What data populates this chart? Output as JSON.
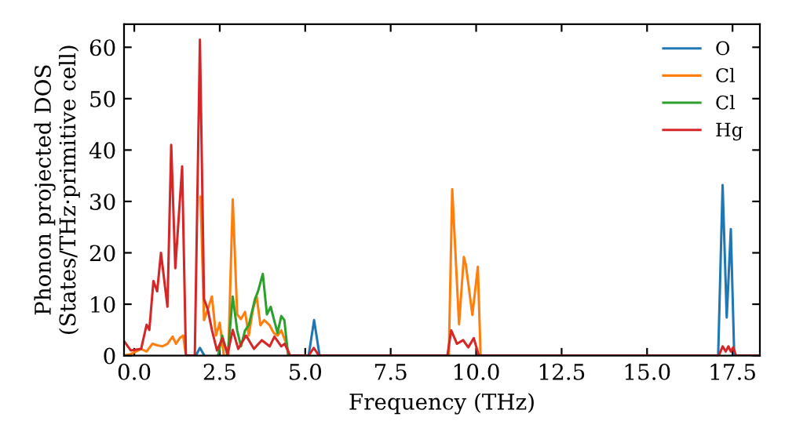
{
  "chart_data": {
    "type": "line",
    "xlabel": "Frequency (THz)",
    "ylabel": "Phonon projected DOS\n(States/THz·primitive cell)",
    "xlim": [
      -0.3,
      18.3
    ],
    "ylim": [
      0,
      64.5
    ],
    "xticks": [
      {
        "value": 0,
        "label": "0.0"
      },
      {
        "value": 2.5,
        "label": "2.5"
      },
      {
        "value": 5,
        "label": "5.0"
      },
      {
        "value": 7.5,
        "label": "7.5"
      },
      {
        "value": 10,
        "label": "10.0"
      },
      {
        "value": 12.5,
        "label": "12.5"
      },
      {
        "value": 15,
        "label": "15.0"
      },
      {
        "value": 17.5,
        "label": "17.5"
      }
    ],
    "yticks": [
      0,
      10,
      20,
      30,
      40,
      50,
      60
    ],
    "grid": false,
    "legend": "top right",
    "marker": "none",
    "line_style": "solid",
    "series": [
      {
        "name": "O",
        "color": "#1f77b4",
        "x": [
          1.8,
          1.92,
          2.05,
          3.5,
          5.1,
          5.26,
          5.42,
          13.0,
          17.08,
          17.21,
          17.33,
          17.45,
          17.55
        ],
        "values": [
          0,
          1.5,
          0,
          null,
          0,
          6.9,
          0,
          null,
          0,
          33.2,
          7.4,
          24.6,
          0
        ]
      },
      {
        "name": "Cl",
        "color": "#ff7f0e",
        "x": [
          -0.3,
          -0.1,
          0.2,
          0.36,
          0.53,
          0.67,
          0.82,
          0.97,
          1.12,
          1.22,
          1.33,
          1.43,
          1.51,
          1.81,
          1.94,
          2.04,
          2.15,
          2.27,
          2.39,
          2.5,
          2.62,
          2.75,
          2.88,
          3.01,
          3.12,
          3.24,
          3.35,
          3.47,
          3.58,
          3.69,
          3.8,
          3.96,
          4.08,
          4.19,
          4.3,
          4.42,
          4.54,
          7.0,
          9.2,
          9.3,
          9.5,
          9.64,
          9.7,
          9.89,
          10.05,
          10.13
        ],
        "values": [
          0,
          0.3,
          1.3,
          0.8,
          2.3,
          2,
          1.8,
          2.3,
          3.7,
          2.3,
          3.4,
          3.9,
          0,
          null,
          30.9,
          6.9,
          9,
          11.5,
          3.9,
          6.4,
          0,
          0,
          30.4,
          8,
          7.1,
          8.5,
          3.9,
          9,
          11.5,
          5.9,
          6.9,
          5.9,
          4.4,
          3.9,
          4.9,
          2.8,
          0,
          null,
          0,
          32.4,
          6.1,
          19.2,
          17.6,
          7.9,
          17.3,
          0
        ]
      },
      {
        "name": "Cl",
        "color": "#2ca02c",
        "x": [
          2.45,
          2.57,
          2.73,
          2.88,
          3.01,
          3.12,
          3.24,
          3.35,
          3.53,
          3.62,
          3.76,
          3.88,
          3.99,
          4.11,
          4.19,
          4.3,
          4.39,
          4.5
        ],
        "values": [
          0,
          3.9,
          0,
          11.5,
          4.9,
          1.8,
          4.9,
          5.9,
          11,
          12.5,
          15.9,
          8,
          9.5,
          6.4,
          4.4,
          7.7,
          6.9,
          0
        ]
      },
      {
        "name": "Hg",
        "color": "#d62728",
        "x": [
          -0.3,
          -0.1,
          0.2,
          0.36,
          0.44,
          0.56,
          0.67,
          0.78,
          0.97,
          1.08,
          1.2,
          1.4,
          1.51,
          1.77,
          1.92,
          2.04,
          2.15,
          2.27,
          2.42,
          2.58,
          2.73,
          2.88,
          3.04,
          3.27,
          3.5,
          3.73,
          3.96,
          4.1,
          4.3,
          4.4,
          4.56,
          5.1,
          5.25,
          5.4,
          9.16,
          9.27,
          9.44,
          9.62,
          9.77,
          9.93,
          10.08,
          17.1,
          17.21,
          17.3,
          17.38,
          17.45,
          17.52,
          17.6,
          18.3
        ],
        "values": [
          2.8,
          1,
          1.3,
          6,
          5,
          14.5,
          12.5,
          20,
          9.5,
          41,
          17,
          36.8,
          0,
          0,
          61.5,
          11,
          9,
          5,
          1,
          3.4,
          0.3,
          5,
          1.3,
          3.9,
          1.3,
          3,
          1.8,
          3.7,
          1.8,
          2.3,
          0,
          0,
          1.5,
          0,
          0,
          4.9,
          2.3,
          3,
          1.6,
          3.4,
          0,
          0,
          1.8,
          0.8,
          1.8,
          0.8,
          1.6,
          0,
          0
        ]
      }
    ]
  }
}
